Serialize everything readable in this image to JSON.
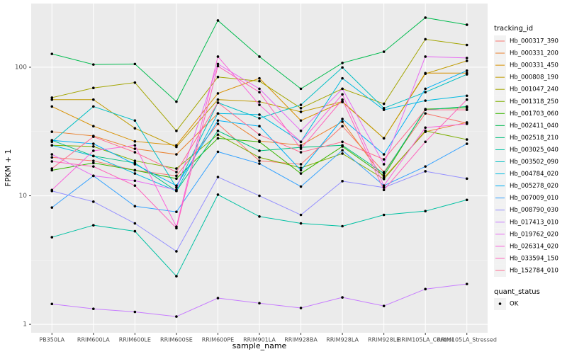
{
  "chart_data": {
    "type": "line",
    "x_label": "sample_name",
    "y_label": "FPKM + 1",
    "categories": [
      "PB350LA",
      "RRIM600LA",
      "RRIM600LE",
      "RRIM600SE",
      "RRIM600PE",
      "RRIM901LA",
      "RRIM928BA",
      "RRIM928LA",
      "RRIM928LE",
      "RRIM105LA_Control",
      "RRIM105LA_Stressed"
    ],
    "log_y": true,
    "ylim": [
      0.86,
      313
    ],
    "yticks": [
      1,
      10,
      100
    ],
    "grid": true,
    "legend_title": "tracking_id",
    "legend_position": "right",
    "point_legend_title": "quant_status",
    "point_legend_items": [
      "OK"
    ],
    "point_color": "#000000",
    "series": [
      {
        "name": "Hb_000317_390",
        "color": "#F8766D",
        "values": [
          19.9,
          18.7,
          15.8,
          14.3,
          36.3,
          18.7,
          17.6,
          34.8,
          15.3,
          43.7,
          36.7
        ]
      },
      {
        "name": "Hb_000331_200",
        "color": "#EA8331",
        "values": [
          31.5,
          29.2,
          23.2,
          21,
          43.7,
          26.7,
          24.7,
          37.7,
          13.8,
          31.5,
          37.2
        ]
      },
      {
        "name": "Hb_000331_450",
        "color": "#D89000",
        "values": [
          49.5,
          34.8,
          26.5,
          24.7,
          62.6,
          82,
          38.5,
          53.6,
          28,
          90,
          90
        ]
      },
      {
        "name": "Hb_000808_190",
        "color": "#C09B00",
        "values": [
          56,
          56,
          33.5,
          24,
          56,
          54,
          45,
          54,
          28,
          89,
          112
        ]
      },
      {
        "name": "Hb_001047_240",
        "color": "#A3A500",
        "values": [
          58,
          69,
          76,
          32,
          84,
          78,
          48,
          68,
          52,
          165,
          149
        ]
      },
      {
        "name": "Hb_001318_250",
        "color": "#7CAE00",
        "values": [
          24.7,
          24.2,
          18.7,
          16.3,
          29.9,
          19.9,
          16.5,
          21.3,
          13.5,
          32,
          27.4
        ]
      },
      {
        "name": "Hb_001703_060",
        "color": "#39B600",
        "values": [
          15.8,
          18,
          15.8,
          13.6,
          28,
          26.3,
          14.9,
          24.2,
          14.3,
          47.2,
          48.4
        ]
      },
      {
        "name": "Hb_002411_040",
        "color": "#00BB4E",
        "values": [
          127,
          105,
          106,
          54,
          231,
          121,
          68,
          108,
          132,
          243,
          214
        ]
      },
      {
        "name": "Hb_002518_210",
        "color": "#00BF7D",
        "values": [
          27,
          20.4,
          18,
          10.9,
          32,
          22.4,
          23.8,
          24.7,
          14.9,
          46.6,
          49.5
        ]
      },
      {
        "name": "Hb_003025_040",
        "color": "#00C1A3",
        "values": [
          4.76,
          5.9,
          5.3,
          2.37,
          10.2,
          6.9,
          6.1,
          5.8,
          7.1,
          7.6,
          9.3
        ]
      },
      {
        "name": "Hb_003502_090",
        "color": "#00BFC4",
        "values": [
          26.3,
          49.5,
          38.5,
          11.6,
          53,
          40.1,
          51,
          99.6,
          48,
          64,
          88
        ]
      },
      {
        "name": "Hb_004784_020",
        "color": "#00BAE0",
        "values": [
          24.7,
          20.4,
          14.9,
          10.9,
          43.7,
          42.8,
          26.3,
          82,
          46.6,
          55,
          60
        ]
      },
      {
        "name": "Hb_005278_020",
        "color": "#00B0F6",
        "values": [
          27,
          25.4,
          17.6,
          12,
          38.5,
          34.8,
          15.8,
          39.6,
          21,
          68,
          94
        ]
      },
      {
        "name": "Hb_007009_010",
        "color": "#35A2FF",
        "values": [
          8.1,
          14.3,
          8.3,
          7.5,
          22,
          17.8,
          11.8,
          22.6,
          12,
          16.9,
          25.4
        ]
      },
      {
        "name": "Hb_008790_030",
        "color": "#9590FF",
        "values": [
          10.9,
          9,
          6.1,
          3.7,
          14,
          10,
          7.1,
          13,
          11.6,
          15.5,
          13.6
        ]
      },
      {
        "name": "Hb_017413_010",
        "color": "#C77CFF",
        "values": [
          1.44,
          1.32,
          1.25,
          1.15,
          1.6,
          1.46,
          1.34,
          1.62,
          1.39,
          1.88,
          2.06
        ]
      },
      {
        "name": "Hb_019762_020",
        "color": "#E76BF3",
        "values": [
          21,
          14.3,
          13.1,
          11.1,
          106,
          68,
          32,
          68,
          17.6,
          121,
          118
        ]
      },
      {
        "name": "Hb_026314_020",
        "color": "#FA62DB",
        "values": [
          11.1,
          22.4,
          24.7,
          5.75,
          121,
          51,
          26.3,
          61.5,
          12,
          33.9,
          36.3
        ]
      },
      {
        "name": "Hb_033594_150",
        "color": "#FF62BC",
        "values": [
          18.5,
          16.9,
          12,
          5.6,
          102,
          64,
          23.2,
          56,
          11.1,
          26.3,
          56
        ]
      },
      {
        "name": "Hb_152784_010",
        "color": "#FF6C91",
        "values": [
          16.3,
          28.8,
          21.8,
          15.3,
          53,
          29.9,
          21.8,
          26.3,
          19.2,
          46.6,
          46.6
        ]
      }
    ]
  }
}
